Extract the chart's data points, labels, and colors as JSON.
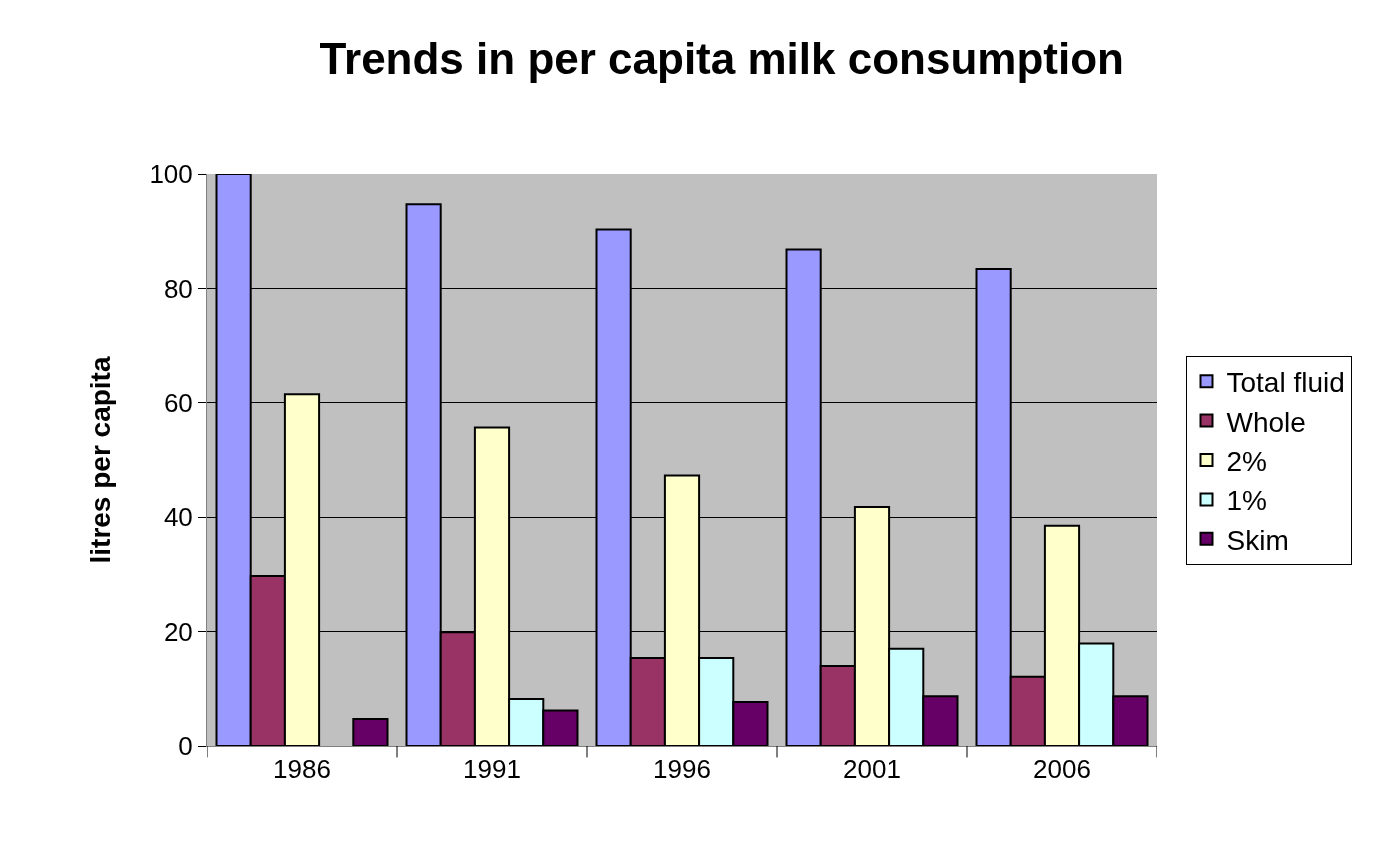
{
  "chart_data": {
    "type": "bar",
    "title": "Trends in per capita milk consumption",
    "ylabel": "litres per capita",
    "categories": [
      "1986",
      "1991",
      "1996",
      "2001",
      "2006"
    ],
    "series": [
      {
        "name": "Total fluid",
        "color": "#9999ff",
        "values": [
          100,
          94.7,
          90.3,
          86.8,
          83.4
        ]
      },
      {
        "name": "Whole",
        "color": "#993366",
        "values": [
          29.7,
          19.9,
          15.4,
          14.0,
          12.1
        ]
      },
      {
        "name": "2%",
        "color": "#ffffcc",
        "values": [
          61.5,
          55.7,
          47.3,
          41.8,
          38.5
        ]
      },
      {
        "name": "1%",
        "color": "#ccffff",
        "values": [
          null,
          8.2,
          15.4,
          17.0,
          17.9
        ]
      },
      {
        "name": "Skim",
        "color": "#660066",
        "values": [
          4.7,
          6.2,
          7.7,
          8.7,
          8.7
        ]
      }
    ],
    "ylim": [
      0,
      100
    ],
    "yticks": [
      0,
      20,
      40,
      60,
      80,
      100
    ],
    "grid": "y",
    "legend": "right"
  }
}
